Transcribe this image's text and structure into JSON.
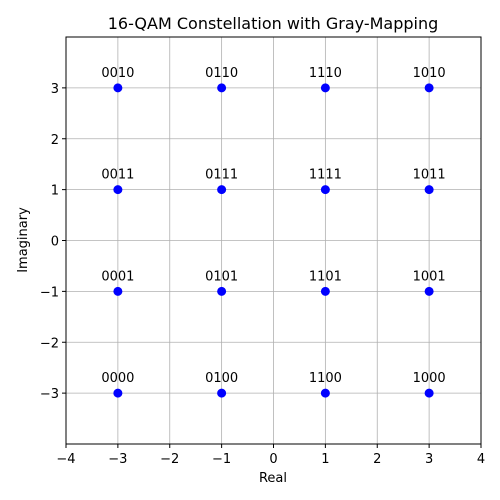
{
  "chart_data": {
    "type": "scatter",
    "title": "16-QAM Constellation with Gray-Mapping",
    "xlabel": "Real",
    "ylabel": "Imaginary",
    "xlim": [
      -4,
      4
    ],
    "ylim": [
      -4,
      4
    ],
    "grid": true,
    "marker_color": "#0000ff",
    "x_ticks": [
      -4,
      -3,
      -2,
      -1,
      0,
      1,
      2,
      3,
      4
    ],
    "x_tick_labels": [
      "−4",
      "−3",
      "−2",
      "−1",
      "0",
      "1",
      "2",
      "3",
      "4"
    ],
    "y_ticks": [
      -3,
      -2,
      -1,
      0,
      1,
      2,
      3
    ],
    "y_tick_labels": [
      "−3",
      "−2",
      "−1",
      "0",
      "1",
      "2",
      "3"
    ],
    "points": [
      {
        "x": -3,
        "y": 3,
        "label": "0010"
      },
      {
        "x": -1,
        "y": 3,
        "label": "0110"
      },
      {
        "x": 1,
        "y": 3,
        "label": "1110"
      },
      {
        "x": 3,
        "y": 3,
        "label": "1010"
      },
      {
        "x": -3,
        "y": 1,
        "label": "0011"
      },
      {
        "x": -1,
        "y": 1,
        "label": "0111"
      },
      {
        "x": 1,
        "y": 1,
        "label": "1111"
      },
      {
        "x": 3,
        "y": 1,
        "label": "1011"
      },
      {
        "x": -3,
        "y": -1,
        "label": "0001"
      },
      {
        "x": -1,
        "y": -1,
        "label": "0101"
      },
      {
        "x": 1,
        "y": -1,
        "label": "1101"
      },
      {
        "x": 3,
        "y": -1,
        "label": "1001"
      },
      {
        "x": -3,
        "y": -3,
        "label": "0000"
      },
      {
        "x": -1,
        "y": -3,
        "label": "0100"
      },
      {
        "x": 1,
        "y": -3,
        "label": "1100"
      },
      {
        "x": 3,
        "y": -3,
        "label": "1000"
      }
    ]
  }
}
